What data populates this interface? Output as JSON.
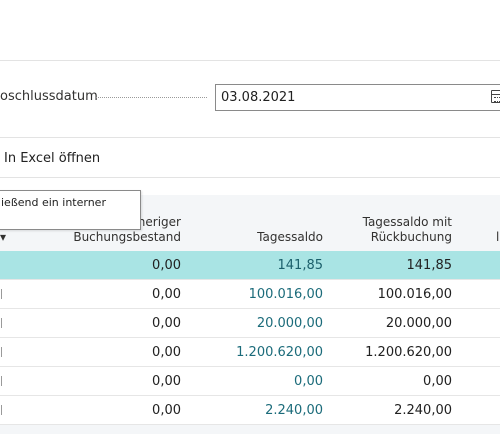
{
  "filter": {
    "label": "oschlussdatum",
    "date_value": "03.08.2021",
    "calendar_icon": "calendar-icon"
  },
  "actions": {
    "excel_label": "In Excel öffnen"
  },
  "tooltip": {
    "text": "ießend ein interner"
  },
  "table": {
    "headers": {
      "col1_line1": "heriger",
      "col1_line2": "Buchungsbestand",
      "col2": "Tagessaldo",
      "col3_line1": "Tagessaldo mit",
      "col3_line2": "Rückbuchung",
      "col4_fragment": "l"
    },
    "rows": [
      {
        "v1": "0,00",
        "v2": "141,85",
        "v3": "141,85",
        "selected": true
      },
      {
        "v1": "0,00",
        "v2": "100.016,00",
        "v3": "100.016,00"
      },
      {
        "v1": "0,00",
        "v2": "20.000,00",
        "v3": "20.000,00"
      },
      {
        "v1": "0,00",
        "v2": "1.200.620,00",
        "v3": "1.200.620,00"
      },
      {
        "v1": "0,00",
        "v2": "0,00",
        "v3": "0,00"
      },
      {
        "v1": "0,00",
        "v2": "2.240,00",
        "v3": "2.240,00"
      }
    ]
  },
  "colors": {
    "selected_row": "#a9e4e4",
    "link_teal": "#1b6b7a",
    "grid_bg": "#f4f6f8"
  }
}
